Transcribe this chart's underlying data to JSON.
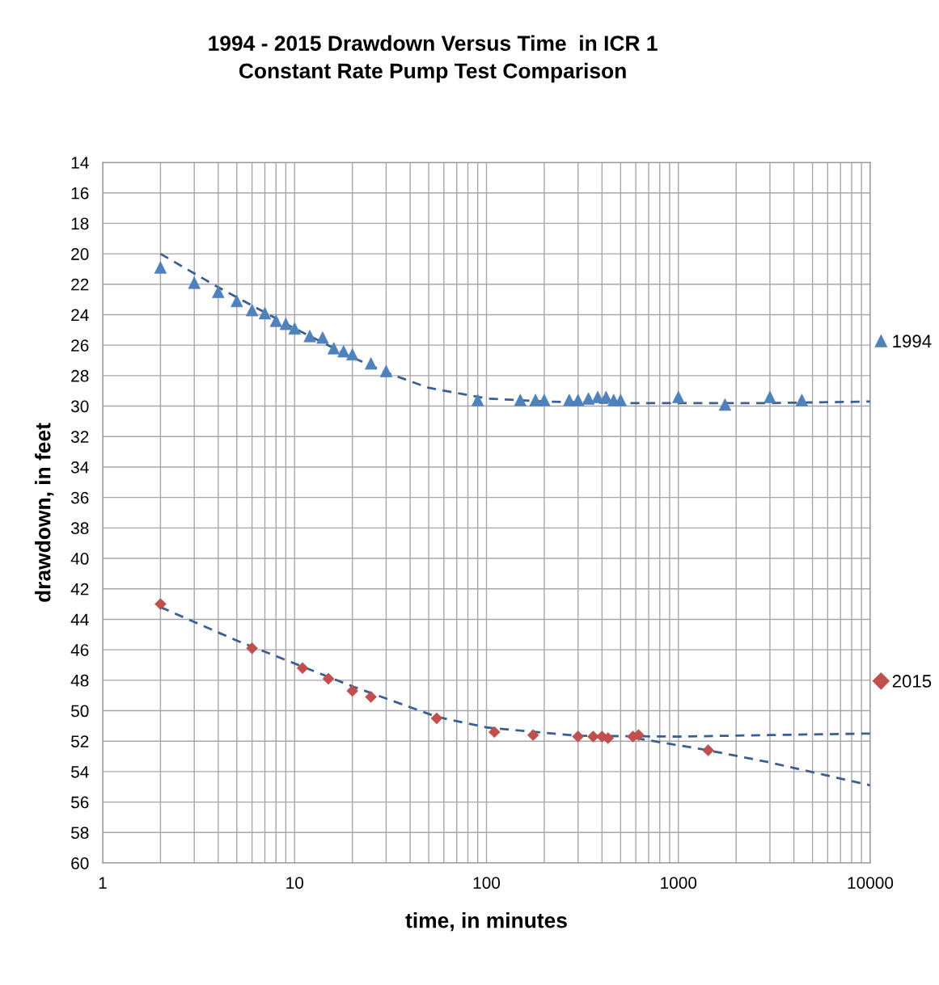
{
  "chart_data": {
    "type": "scatter",
    "title": "1994 - 2015 Drawdown Versus Time  in ICR 1\nConstant Rate Pump Test Comparison",
    "xlabel": "time, in minutes",
    "ylabel": "drawdown, in feet",
    "log": "x",
    "xlim": [
      1,
      10000
    ],
    "xticks": [
      1,
      10,
      100,
      1000,
      10000
    ],
    "ylim": [
      60,
      14
    ],
    "yticks": [
      14,
      16,
      18,
      20,
      22,
      24,
      26,
      28,
      30,
      32,
      34,
      36,
      38,
      40,
      42,
      44,
      46,
      48,
      50,
      52,
      54,
      56,
      58,
      60
    ],
    "grid": true,
    "legend": "right",
    "series": [
      {
        "name": "1994",
        "marker": "triangle",
        "color": "#4f81bd",
        "x": [
          2,
          3,
          4,
          5,
          6,
          7,
          8,
          9,
          10,
          12,
          14,
          16,
          18,
          20,
          25,
          30,
          90,
          150,
          180,
          200,
          270,
          300,
          340,
          380,
          420,
          460,
          500,
          1000,
          1750,
          3000,
          4400
        ],
        "values": [
          20.9,
          21.9,
          22.5,
          23.1,
          23.7,
          23.9,
          24.4,
          24.6,
          24.9,
          25.4,
          25.5,
          26.2,
          26.4,
          26.6,
          27.2,
          27.7,
          29.6,
          29.6,
          29.6,
          29.6,
          29.6,
          29.6,
          29.5,
          29.4,
          29.4,
          29.6,
          29.6,
          29.4,
          29.9,
          29.4,
          29.6
        ]
      },
      {
        "name": "2015",
        "marker": "diamond",
        "color": "#c0504d",
        "x": [
          2,
          6,
          11,
          15,
          20,
          25,
          55,
          110,
          175,
          300,
          360,
          400,
          430,
          580,
          620,
          1430
        ],
        "values": [
          43.0,
          45.9,
          47.2,
          47.9,
          48.7,
          49.1,
          50.5,
          51.4,
          51.6,
          51.7,
          51.7,
          51.7,
          51.8,
          51.7,
          51.6,
          52.6
        ]
      },
      {
        "type": "line",
        "marker": "none",
        "line_style": "dashed",
        "color": "#3b5f93",
        "x": [
          2,
          4,
          10,
          20,
          30,
          50,
          100,
          200,
          500,
          1000,
          3000,
          10000
        ],
        "values": [
          20.0,
          22.2,
          24.9,
          26.8,
          27.8,
          28.8,
          29.5,
          29.7,
          29.8,
          29.8,
          29.8,
          29.7
        ]
      },
      {
        "type": "line",
        "marker": "none",
        "line_style": "dashed",
        "color": "#3b5f93",
        "x": [
          2,
          5,
          10,
          20,
          55,
          100,
          300,
          1000,
          3000,
          10000
        ],
        "values": [
          43.2,
          45.4,
          46.9,
          48.4,
          50.4,
          51.1,
          51.65,
          51.7,
          51.6,
          51.5
        ]
      },
      {
        "type": "line",
        "marker": "none",
        "line_style": "dashed",
        "color": "#3b5f93",
        "x": [
          600,
          1430,
          3000,
          10000
        ],
        "values": [
          51.8,
          52.6,
          53.4,
          54.9
        ]
      }
    ]
  }
}
